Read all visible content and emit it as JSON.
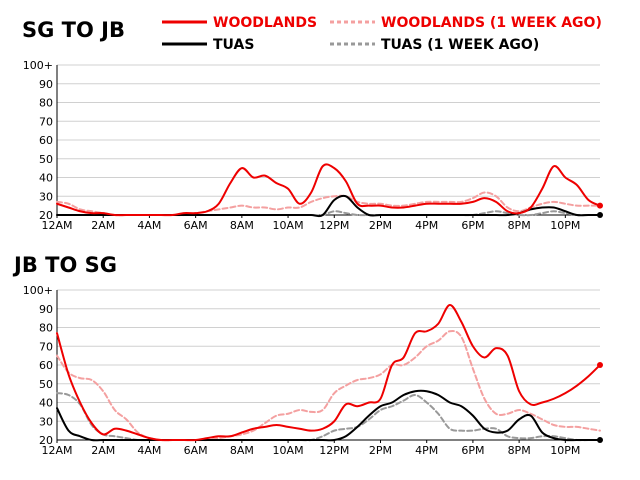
{
  "colors": {
    "woodlands": "#ee0000",
    "woodlands_week_ago": "#f4a0a0",
    "tuas": "#000000",
    "tuas_week_ago": "#999999",
    "grid": "#d0d0d0"
  },
  "legend": {
    "woodlands": "WOODLANDS",
    "woodlands_week_ago": "WOODLANDS (1 WEEK AGO)",
    "tuas": "TUAS",
    "tuas_week_ago": "TUAS (1 WEEK AGO)"
  },
  "chart_data": [
    {
      "type": "line",
      "title": "SG TO JB",
      "xlabel": "",
      "ylabel": "",
      "x_ticks": [
        "12AM",
        "2AM",
        "4AM",
        "6AM",
        "8AM",
        "10AM",
        "12PM",
        "2PM",
        "4PM",
        "6PM",
        "8PM",
        "10PM"
      ],
      "y_ticks": [
        "20",
        "30",
        "40",
        "50",
        "60",
        "70",
        "80",
        "90",
        "100+"
      ],
      "xlim": [
        0,
        23.5
      ],
      "ylim": [
        20,
        100
      ],
      "grid": true,
      "legend_position": "top-right",
      "x": [
        0,
        0.5,
        1,
        1.5,
        2,
        2.5,
        3,
        3.5,
        4,
        4.5,
        5,
        5.5,
        6,
        6.5,
        7,
        7.5,
        8,
        8.5,
        9,
        9.5,
        10,
        10.5,
        11,
        11.5,
        12,
        12.5,
        13,
        13.5,
        14,
        14.5,
        15,
        15.5,
        16,
        16.5,
        17,
        17.5,
        18,
        18.5,
        19,
        19.5,
        20,
        20.5,
        21,
        21.5,
        22,
        22.5,
        23,
        23.5
      ],
      "series": [
        {
          "name": "WOODLANDS",
          "values": [
            26,
            24,
            22,
            21,
            21,
            20,
            20,
            20,
            20,
            20,
            20,
            21,
            21,
            22,
            26,
            37,
            45,
            40,
            41,
            37,
            34,
            26,
            32,
            46,
            45,
            38,
            26,
            25,
            25,
            24,
            24,
            25,
            26,
            26,
            26,
            26,
            27,
            29,
            27,
            22,
            21,
            24,
            34,
            46,
            40,
            36,
            28,
            25
          ]
        },
        {
          "name": "WOODLANDS (1 WEEK AGO)",
          "values": [
            27,
            26,
            23,
            22,
            21,
            20,
            20,
            20,
            20,
            20,
            20,
            20,
            21,
            22,
            23,
            24,
            25,
            24,
            24,
            23,
            24,
            24,
            27,
            29,
            30,
            30,
            27,
            26,
            26,
            25,
            25,
            26,
            27,
            27,
            27,
            27,
            29,
            32,
            30,
            24,
            22,
            24,
            26,
            27,
            26,
            25,
            25,
            25
          ]
        },
        {
          "name": "TUAS",
          "values": [
            20,
            20,
            20,
            20,
            20,
            20,
            20,
            20,
            20,
            20,
            20,
            20,
            20,
            20,
            20,
            20,
            20,
            20,
            20,
            20,
            20,
            20,
            20,
            20,
            28,
            30,
            24,
            20,
            20,
            20,
            20,
            20,
            20,
            20,
            20,
            20,
            20,
            20,
            20,
            20,
            21,
            23,
            24,
            24,
            22,
            20,
            20,
            20
          ]
        },
        {
          "name": "TUAS (1 WEEK AGO)",
          "values": [
            20,
            20,
            20,
            20,
            20,
            20,
            20,
            20,
            20,
            20,
            20,
            20,
            20,
            20,
            20,
            20,
            20,
            20,
            20,
            20,
            20,
            20,
            20,
            20,
            22,
            21,
            20,
            20,
            20,
            20,
            20,
            20,
            20,
            20,
            20,
            20,
            20,
            21,
            22,
            21,
            20,
            20,
            21,
            22,
            21,
            20,
            20,
            20
          ]
        }
      ]
    },
    {
      "type": "line",
      "title": "JB TO SG",
      "xlabel": "",
      "ylabel": "",
      "x_ticks": [
        "12AM",
        "2AM",
        "4AM",
        "6AM",
        "8AM",
        "10AM",
        "12PM",
        "2PM",
        "4PM",
        "6PM",
        "8PM",
        "10PM"
      ],
      "y_ticks": [
        "20",
        "30",
        "40",
        "50",
        "60",
        "70",
        "80",
        "90",
        "100+"
      ],
      "xlim": [
        0,
        23.5
      ],
      "ylim": [
        20,
        100
      ],
      "grid": true,
      "legend_position": "none",
      "x": [
        0,
        0.5,
        1,
        1.5,
        2,
        2.5,
        3,
        3.5,
        4,
        4.5,
        5,
        5.5,
        6,
        6.5,
        7,
        7.5,
        8,
        8.5,
        9,
        9.5,
        10,
        10.5,
        11,
        11.5,
        12,
        12.5,
        13,
        13.5,
        14,
        14.5,
        15,
        15.5,
        16,
        16.5,
        17,
        17.5,
        18,
        18.5,
        19,
        19.5,
        20,
        20.5,
        21,
        21.5,
        22,
        22.5,
        23,
        23.5
      ],
      "series": [
        {
          "name": "WOODLANDS",
          "values": [
            77,
            55,
            40,
            29,
            23,
            26,
            25,
            23,
            21,
            20,
            20,
            20,
            20,
            21,
            22,
            22,
            24,
            26,
            27,
            28,
            27,
            26,
            25,
            26,
            30,
            39,
            38,
            40,
            42,
            60,
            64,
            77,
            78,
            82,
            92,
            83,
            70,
            64,
            69,
            65,
            46,
            39,
            40,
            42,
            45,
            49,
            54,
            60
          ]
        },
        {
          "name": "WOODLANDS (1 WEEK AGO)",
          "values": [
            65,
            56,
            53,
            52,
            46,
            36,
            31,
            24,
            21,
            20,
            20,
            20,
            20,
            20,
            21,
            22,
            23,
            25,
            29,
            33,
            34,
            36,
            35,
            36,
            45,
            49,
            52,
            53,
            55,
            60,
            60,
            64,
            70,
            73,
            78,
            75,
            58,
            42,
            34,
            34,
            36,
            34,
            31,
            28,
            27,
            27,
            26,
            25
          ]
        },
        {
          "name": "TUAS",
          "values": [
            37,
            25,
            22,
            20,
            20,
            20,
            20,
            20,
            20,
            20,
            20,
            20,
            20,
            20,
            20,
            20,
            20,
            20,
            20,
            20,
            20,
            20,
            20,
            20,
            20,
            22,
            27,
            33,
            38,
            40,
            44,
            46,
            46,
            44,
            40,
            38,
            33,
            26,
            24,
            25,
            31,
            33,
            24,
            21,
            20,
            20,
            20,
            20
          ]
        },
        {
          "name": "TUAS (1 WEEK AGO)",
          "values": [
            45,
            44,
            39,
            28,
            23,
            22,
            21,
            20,
            20,
            20,
            20,
            20,
            20,
            20,
            20,
            20,
            20,
            20,
            20,
            20,
            20,
            20,
            20,
            22,
            25,
            26,
            27,
            31,
            36,
            38,
            41,
            44,
            40,
            34,
            26,
            25,
            25,
            26,
            26,
            22,
            21,
            21,
            22,
            22,
            21,
            20,
            20,
            20
          ]
        }
      ]
    }
  ]
}
